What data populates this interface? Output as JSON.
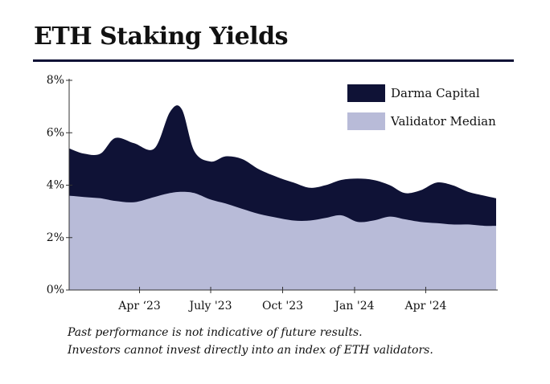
{
  "header": {
    "title": "ETH Staking Yields"
  },
  "footnotes": [
    "Past performance is not indicative of future results.",
    "Investors cannot invest directly into an index of ETH validators."
  ],
  "chart_data": {
    "type": "area",
    "title": "ETH Staking Yields",
    "xlabel": "",
    "ylabel": "",
    "ylim": [
      0,
      8
    ],
    "xlim": [
      "2023-01-01",
      "2024-06-30"
    ],
    "y_ticks": [
      0,
      2,
      4,
      6,
      8
    ],
    "y_tick_labels": [
      "0%",
      "2%",
      "4%",
      "6%",
      "8%"
    ],
    "x_ticks": [
      "2023-04-01",
      "2023-07-01",
      "2023-10-01",
      "2024-01-01",
      "2024-04-01"
    ],
    "x_tick_labels": [
      "Apr ‘23",
      "July '23",
      "Oct '23",
      "Jan '24",
      "Apr '24"
    ],
    "legend_position": "top-right",
    "grid": false,
    "x": [
      "2023-01-01",
      "2023-01-20",
      "2023-02-10",
      "2023-03-01",
      "2023-03-25",
      "2023-04-20",
      "2023-05-10",
      "2023-05-25",
      "2023-06-10",
      "2023-07-01",
      "2023-07-20",
      "2023-08-10",
      "2023-09-01",
      "2023-09-25",
      "2023-10-15",
      "2023-11-05",
      "2023-11-25",
      "2023-12-15",
      "2024-01-05",
      "2024-01-25",
      "2024-02-15",
      "2024-03-05",
      "2024-03-25",
      "2024-04-15",
      "2024-05-05",
      "2024-05-25",
      "2024-06-15",
      "2024-06-30"
    ],
    "series": [
      {
        "name": "Darma Capital",
        "color": "#0f1236",
        "values": [
          5.4,
          5.2,
          5.2,
          5.8,
          5.6,
          5.4,
          6.8,
          6.9,
          5.3,
          4.9,
          5.1,
          5.0,
          4.6,
          4.3,
          4.1,
          3.9,
          4.0,
          4.2,
          4.25,
          4.2,
          4.0,
          3.7,
          3.8,
          4.1,
          4.0,
          3.75,
          3.6,
          3.5
        ]
      },
      {
        "name": "Validator Median",
        "color": "#b8bbd8",
        "values": [
          3.6,
          3.55,
          3.5,
          3.4,
          3.35,
          3.55,
          3.7,
          3.75,
          3.7,
          3.45,
          3.3,
          3.1,
          2.9,
          2.75,
          2.65,
          2.65,
          2.75,
          2.85,
          2.6,
          2.65,
          2.8,
          2.7,
          2.6,
          2.55,
          2.5,
          2.5,
          2.45,
          2.45
        ]
      }
    ]
  }
}
